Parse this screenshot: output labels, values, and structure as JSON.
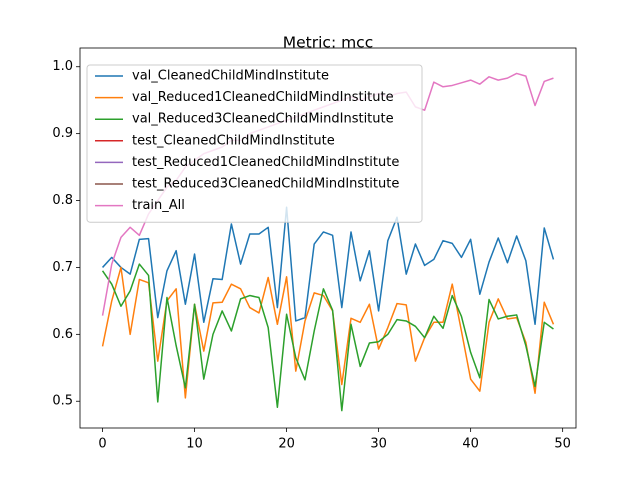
{
  "chart_data": {
    "type": "line",
    "title": "Metric: mcc",
    "x": [
      0,
      1,
      2,
      3,
      4,
      5,
      6,
      7,
      8,
      9,
      10,
      11,
      12,
      13,
      14,
      15,
      16,
      17,
      18,
      19,
      20,
      21,
      22,
      23,
      24,
      25,
      26,
      27,
      28,
      29,
      30,
      31,
      32,
      33,
      34,
      35,
      36,
      37,
      38,
      39,
      40,
      41,
      42,
      43,
      44,
      45,
      46,
      47,
      48,
      49
    ],
    "series": [
      {
        "name": "val_CleanedChildMindInstitute",
        "color": "#1f77b4",
        "values": [
          0.7,
          0.715,
          0.7,
          0.69,
          0.742,
          0.743,
          0.625,
          0.695,
          0.725,
          0.645,
          0.72,
          0.618,
          0.683,
          0.682,
          0.765,
          0.705,
          0.75,
          0.75,
          0.76,
          0.64,
          0.79,
          0.62,
          0.625,
          0.735,
          0.753,
          0.748,
          0.64,
          0.753,
          0.68,
          0.725,
          0.635,
          0.74,
          0.775,
          0.69,
          0.735,
          0.703,
          0.712,
          0.74,
          0.736,
          0.715,
          0.742,
          0.66,
          0.708,
          0.744,
          0.707,
          0.747,
          0.71,
          0.615,
          0.759,
          0.712
        ]
      },
      {
        "name": "val_Reduced1CleanedChildMindInstitute",
        "color": "#ff7f0e",
        "values": [
          0.582,
          0.65,
          0.7,
          0.6,
          0.682,
          0.677,
          0.56,
          0.65,
          0.668,
          0.505,
          0.645,
          0.575,
          0.647,
          0.648,
          0.675,
          0.668,
          0.64,
          0.632,
          0.685,
          0.615,
          0.686,
          0.545,
          0.62,
          0.662,
          0.658,
          0.635,
          0.525,
          0.624,
          0.618,
          0.645,
          0.578,
          0.61,
          0.646,
          0.644,
          0.56,
          0.595,
          0.618,
          0.618,
          0.675,
          0.605,
          0.533,
          0.515,
          0.618,
          0.653,
          0.623,
          0.625,
          0.588,
          0.512,
          0.648,
          0.615
        ]
      },
      {
        "name": "val_Reduced3CleanedChildMindInstitute",
        "color": "#2ca02c",
        "values": [
          0.695,
          0.675,
          0.642,
          0.665,
          0.705,
          0.688,
          0.499,
          0.655,
          0.583,
          0.52,
          0.645,
          0.533,
          0.6,
          0.635,
          0.605,
          0.653,
          0.658,
          0.655,
          0.61,
          0.491,
          0.63,
          0.565,
          0.532,
          0.605,
          0.668,
          0.636,
          0.486,
          0.615,
          0.552,
          0.587,
          0.589,
          0.6,
          0.622,
          0.62,
          0.612,
          0.595,
          0.627,
          0.609,
          0.658,
          0.627,
          0.573,
          0.535,
          0.652,
          0.623,
          0.627,
          0.629,
          0.583,
          0.522,
          0.618,
          0.608
        ]
      },
      {
        "name": "test_CleanedChildMindInstitute",
        "color": "#d62728",
        "values": [
          null,
          null,
          null,
          null,
          null,
          null,
          null,
          null,
          null,
          null,
          null,
          null,
          null,
          null,
          null,
          null,
          null,
          null,
          null,
          null,
          null,
          null,
          null,
          null,
          null,
          null,
          null,
          null,
          null,
          null,
          null,
          null,
          null,
          null,
          null,
          null,
          null,
          null,
          null,
          null,
          null,
          null,
          null,
          null,
          null,
          null,
          null,
          null,
          null,
          null
        ]
      },
      {
        "name": "test_Reduced1CleanedChildMindInstitute",
        "color": "#9467bd",
        "values": [
          null,
          null,
          null,
          null,
          null,
          null,
          null,
          null,
          null,
          null,
          null,
          null,
          null,
          null,
          null,
          null,
          null,
          null,
          null,
          null,
          null,
          null,
          null,
          null,
          null,
          null,
          null,
          null,
          null,
          null,
          null,
          null,
          null,
          null,
          null,
          null,
          null,
          null,
          null,
          null,
          null,
          null,
          null,
          null,
          null,
          null,
          null,
          null,
          null,
          null
        ]
      },
      {
        "name": "test_Reduced3CleanedChildMindInstitute",
        "color": "#8c564b",
        "values": [
          null,
          null,
          null,
          null,
          null,
          null,
          null,
          null,
          null,
          null,
          null,
          null,
          null,
          null,
          null,
          null,
          null,
          null,
          null,
          null,
          null,
          null,
          null,
          null,
          null,
          null,
          null,
          null,
          null,
          null,
          null,
          null,
          null,
          null,
          null,
          null,
          null,
          null,
          null,
          null,
          null,
          null,
          null,
          null,
          null,
          null,
          null,
          null,
          null,
          null
        ]
      },
      {
        "name": "train_All",
        "color": "#e377c2",
        "values": [
          0.628,
          0.705,
          0.745,
          0.76,
          0.748,
          0.78,
          0.8,
          0.82,
          0.83,
          0.85,
          0.86,
          0.87,
          0.875,
          0.88,
          0.89,
          0.89,
          0.9,
          0.905,
          0.91,
          0.915,
          0.92,
          0.925,
          0.93,
          0.935,
          0.94,
          0.945,
          0.95,
          0.955,
          0.95,
          0.955,
          0.96,
          0.955,
          0.96,
          0.962,
          0.94,
          0.935,
          0.977,
          0.97,
          0.972,
          0.976,
          0.98,
          0.974,
          0.985,
          0.98,
          0.983,
          0.99,
          0.986,
          0.942,
          0.978,
          0.983
        ]
      }
    ],
    "xlim": [
      -2.45,
      51.45
    ],
    "xticks": [
      0,
      10,
      20,
      30,
      40,
      50
    ],
    "ylim": [
      0.46,
      1.028
    ],
    "yticks": [
      0.5,
      0.6,
      0.7,
      0.8,
      0.9,
      {
        "value": 1,
        "label": "1.0"
      }
    ],
    "grid": false,
    "legend": "upper left"
  }
}
